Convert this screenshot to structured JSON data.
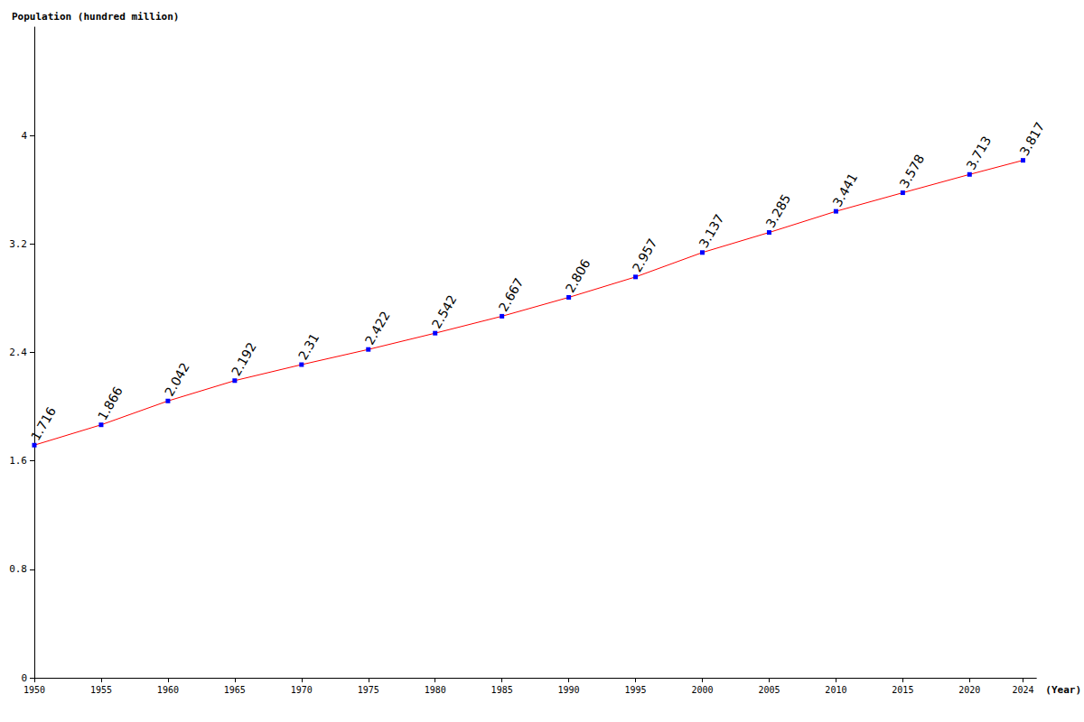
{
  "chart_data": {
    "type": "line",
    "y_label": "Population (hundred million)",
    "x_label": "(Year)",
    "x": [
      1950,
      1955,
      1960,
      1965,
      1970,
      1975,
      1980,
      1985,
      1990,
      1995,
      2000,
      2005,
      2010,
      2015,
      2020,
      2024
    ],
    "values": [
      1.716,
      1.866,
      2.042,
      2.192,
      2.31,
      2.422,
      2.542,
      2.667,
      2.806,
      2.957,
      3.137,
      3.285,
      3.441,
      3.578,
      3.713,
      3.817
    ],
    "color": "#ff0000",
    "marker": "square",
    "xlim": [
      1950,
      2025
    ],
    "xticks": [
      1950,
      1955,
      1960,
      1965,
      1970,
      1975,
      1980,
      1985,
      1990,
      1995,
      2000,
      2005,
      2010,
      2015,
      2020,
      2024
    ],
    "ylim": [
      0,
      4.8
    ],
    "yticks": [
      0,
      0.8,
      1.6,
      2.4,
      3.2,
      4
    ],
    "grid": false,
    "data_labels": true
  }
}
